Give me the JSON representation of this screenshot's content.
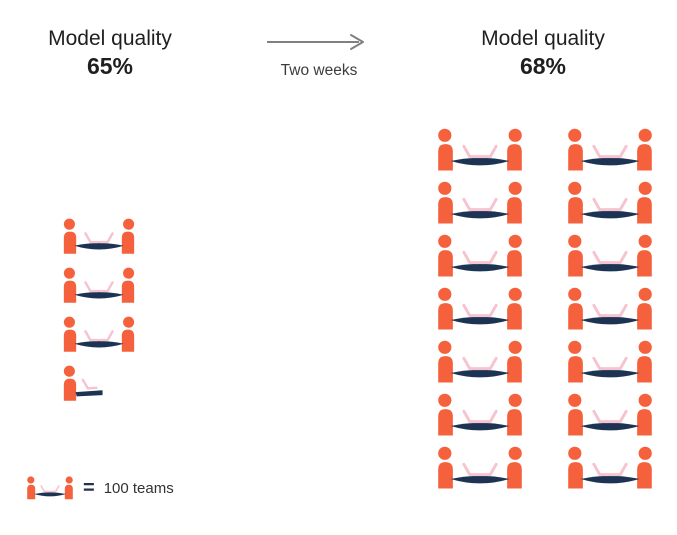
{
  "before": {
    "title": "Model quality",
    "value": "65%"
  },
  "transition": {
    "label": "Two weeks"
  },
  "after": {
    "title": "Model quality",
    "value": "68%"
  },
  "legend": {
    "equals": "=",
    "label": "100 teams"
  },
  "colors": {
    "person": "#F4613C",
    "table": "#1C3354",
    "laptop": "#F6C3CE",
    "arrow": "#808080",
    "text": "#212121"
  },
  "chart_data": {
    "type": "pictogram",
    "unit_icon": "team-at-table-icon",
    "unit_value_teams": 100,
    "unit_label": "100 teams",
    "transition_label": "Two weeks",
    "groups": [
      {
        "name": "before",
        "title": "Model quality",
        "model_quality": "65%",
        "full_icons": 3,
        "partial_icons": 1,
        "approx_teams": 350,
        "layout": "single-column"
      },
      {
        "name": "after",
        "title": "Model quality",
        "model_quality": "68%",
        "full_icons": 14,
        "partial_icons": 0,
        "approx_teams": 1400,
        "layout": "2-columns-7-rows"
      }
    ]
  }
}
